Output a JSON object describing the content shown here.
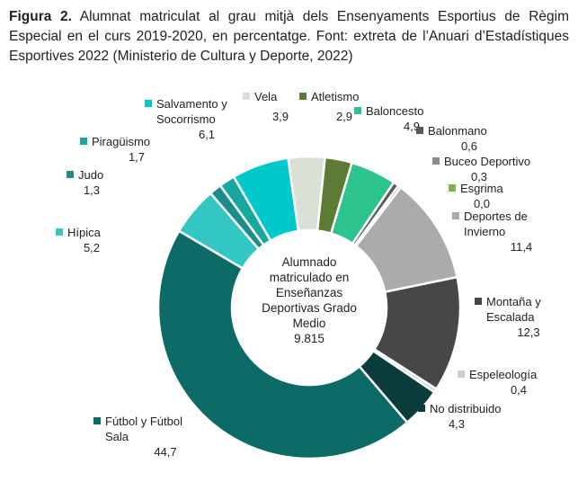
{
  "caption": {
    "prefix": "Figura 2.",
    "text": "Alumnat matriculat al grau mitjà dels Ensenyaments Esportius de Règim Especial en el curs 2019-2020, en percentatge. Font: extreta de l’Anuari d’Estadístiques Esportives 2022 (Ministerio de Cultura y Deporte, 2022)"
  },
  "chart_data": {
    "type": "pie",
    "donut": true,
    "center_label": [
      "Alumnado",
      "matriculado en",
      "Enseñanzas",
      "Deportivas Grado",
      "Medio",
      "9.815"
    ],
    "categories": [
      "Atletismo",
      "Baloncesto",
      "Balonmano",
      "Buceo Deportivo",
      "Esgrima",
      "Deportes de Invierno",
      "Montaña y Escalada",
      "Espeleología",
      "No distribuido",
      "Fútbol y Fútbol Sala",
      "Hípica",
      "Judo",
      "Piragüismo",
      "Salvamento y Socorrismo",
      "Vela"
    ],
    "values": [
      2.9,
      4.9,
      0.6,
      0.3,
      0.0,
      11.4,
      12.3,
      0.4,
      4.3,
      44.7,
      5.2,
      1.3,
      1.7,
      6.1,
      3.9
    ],
    "value_labels": [
      "2,9",
      "4,9",
      "0,6",
      "0,3",
      "0,0",
      "11,4",
      "12,3",
      "0,4",
      "4,3",
      "44,7",
      "5,2",
      "1,3",
      "1,7",
      "6,1",
      "3,9"
    ],
    "colors": [
      "#5d7b34",
      "#2cc48c",
      "#555a5a",
      "#8c8c8c",
      "#7fb24e",
      "#ababab",
      "#474747",
      "#cfcfcf",
      "#0a3c3c",
      "#0c6a67",
      "#33c7c4",
      "#1a8c8c",
      "#16a8a0",
      "#00c9cc",
      "#d9e1d7"
    ],
    "legend_placement": "around"
  }
}
